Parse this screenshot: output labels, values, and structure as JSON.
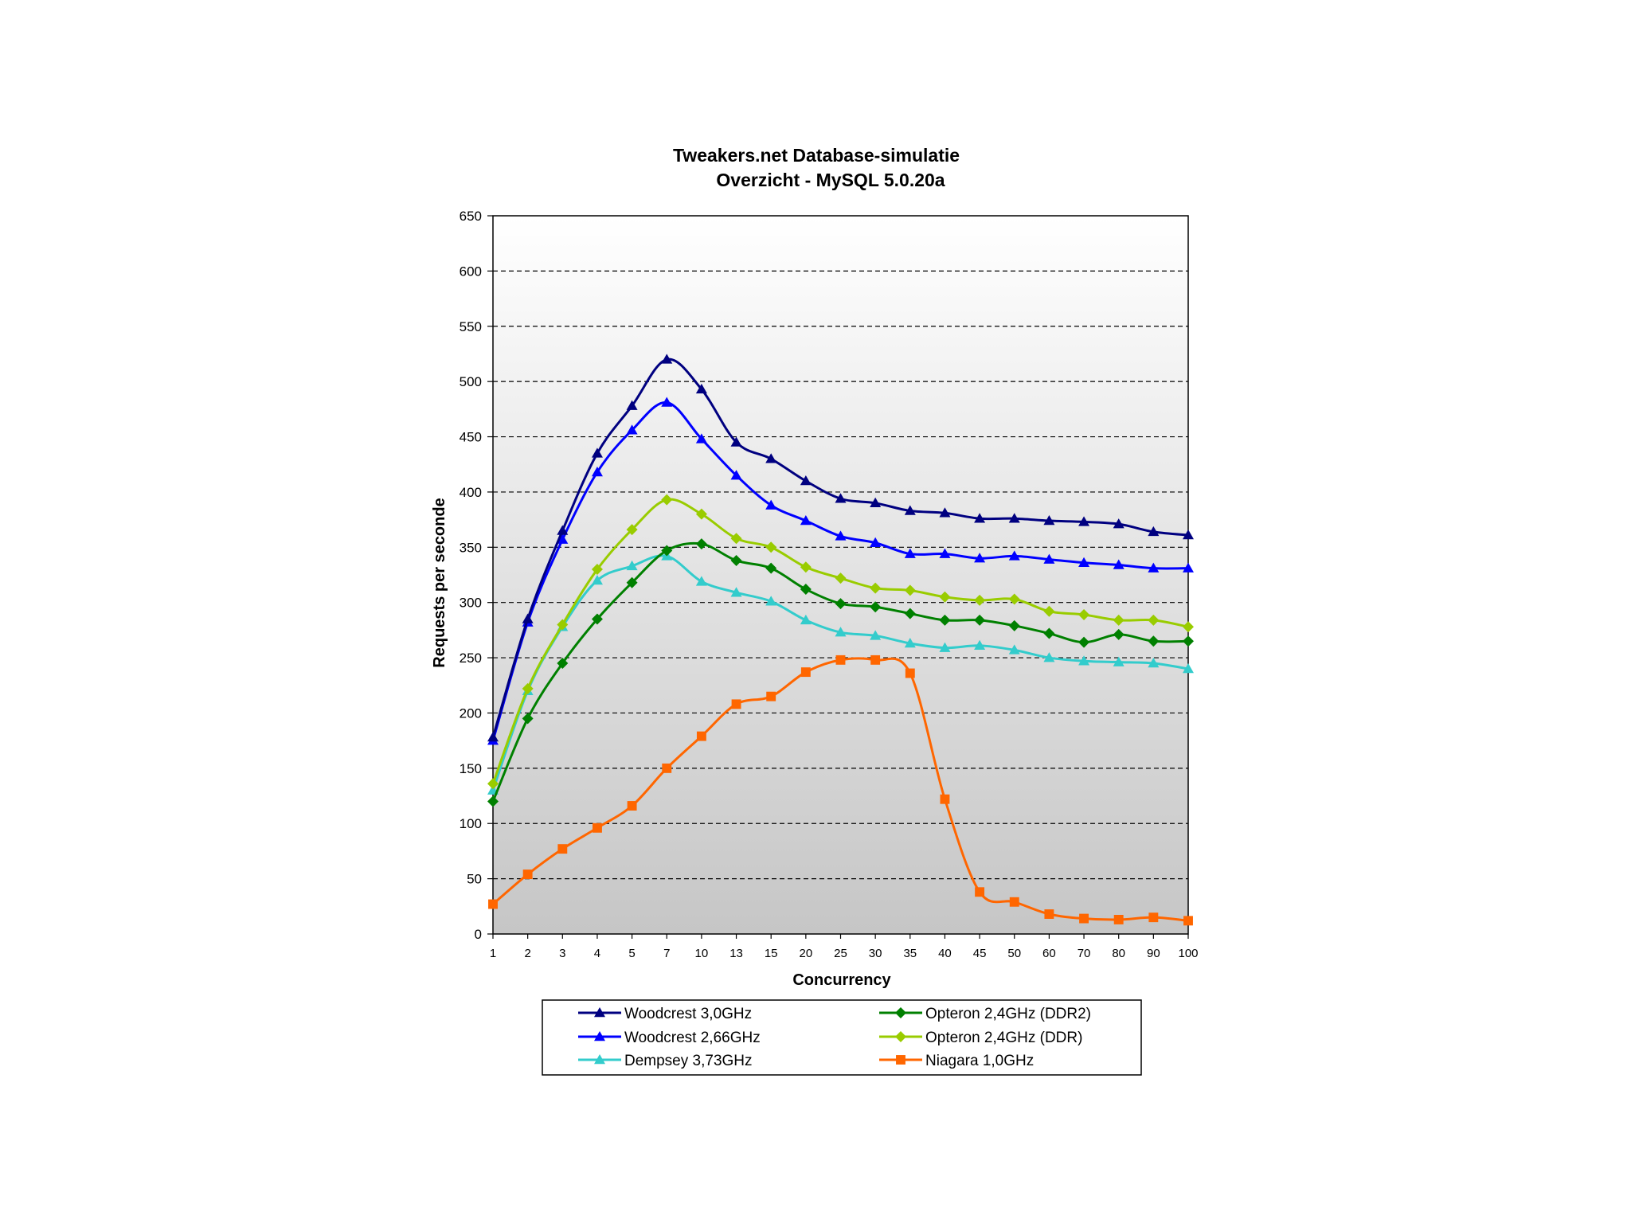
{
  "chart_data": {
    "type": "line",
    "title": "Tweakers.net Database-simulatie",
    "subtitle": "Overzicht - MySQL 5.0.20a",
    "xlabel": "Concurrency",
    "ylabel": "Requests per seconde",
    "ylim": [
      0,
      650
    ],
    "yticks": [
      "0",
      "50",
      "100",
      "150",
      "200",
      "250",
      "300",
      "350",
      "400",
      "450",
      "500",
      "550",
      "600",
      "650"
    ],
    "categories": [
      "1",
      "2",
      "3",
      "4",
      "5",
      "7",
      "10",
      "13",
      "15",
      "20",
      "25",
      "30",
      "35",
      "40",
      "45",
      "50",
      "60",
      "70",
      "80",
      "90",
      "100"
    ],
    "grid": "horizontal dashed",
    "legend_position": "bottom",
    "series": [
      {
        "name": "Woodcrest 3,0GHz",
        "color": "#000080",
        "marker": "triangle",
        "values": [
          178,
          285,
          365,
          435,
          478,
          520,
          493,
          445,
          430,
          410,
          394,
          390,
          383,
          381,
          376,
          376,
          374,
          373,
          371,
          364,
          361
        ]
      },
      {
        "name": "Woodcrest 2,66GHz",
        "color": "#0000ff",
        "marker": "triangle",
        "values": [
          175,
          282,
          357,
          418,
          456,
          481,
          448,
          415,
          388,
          374,
          360,
          354,
          344,
          344,
          340,
          342,
          339,
          336,
          334,
          331,
          331
        ]
      },
      {
        "name": "Dempsey 3,73GHz",
        "color": "#33cccc",
        "marker": "triangle",
        "values": [
          130,
          220,
          278,
          320,
          333,
          342,
          319,
          309,
          301,
          284,
          273,
          270,
          263,
          259,
          261,
          257,
          250,
          247,
          246,
          245,
          240
        ]
      },
      {
        "name": "Opteron 2,4GHz (DDR2)",
        "color": "#008000",
        "marker": "diamond",
        "values": [
          120,
          195,
          245,
          285,
          318,
          347,
          353,
          338,
          331,
          312,
          299,
          296,
          290,
          284,
          284,
          279,
          272,
          264,
          271,
          265,
          265
        ]
      },
      {
        "name": "Opteron 2,4GHz (DDR)",
        "color": "#99cc00",
        "marker": "diamond",
        "values": [
          136,
          222,
          280,
          330,
          366,
          393,
          380,
          358,
          350,
          332,
          322,
          313,
          311,
          305,
          302,
          303,
          292,
          289,
          284,
          284,
          278
        ]
      },
      {
        "name": "Niagara 1,0GHz",
        "color": "#ff6600",
        "marker": "square",
        "values": [
          27,
          54,
          77,
          96,
          116,
          150,
          179,
          208,
          215,
          237,
          248,
          248,
          236,
          122,
          38,
          29,
          18,
          14,
          13,
          15,
          12
        ]
      }
    ]
  }
}
